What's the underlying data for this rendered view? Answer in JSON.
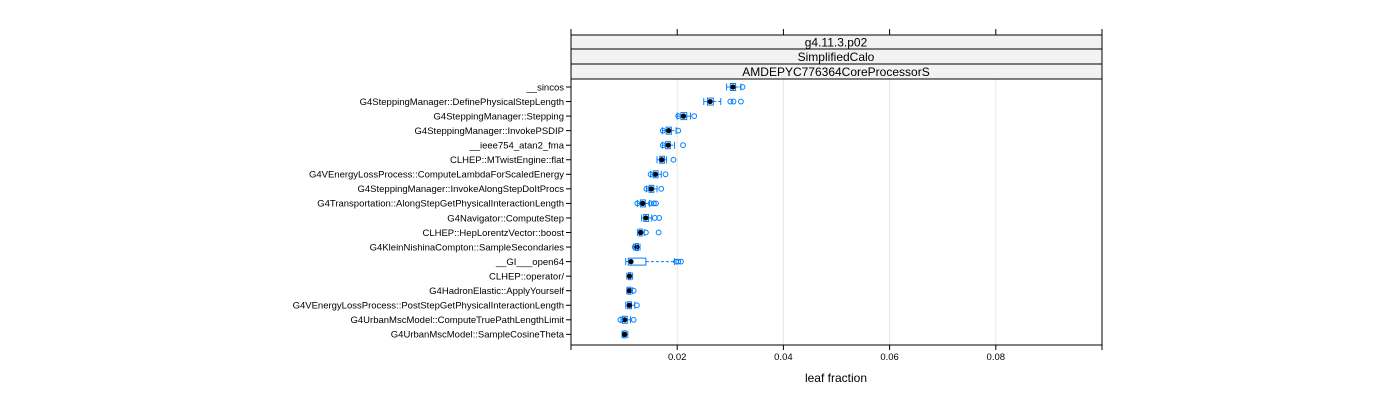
{
  "chart_data": {
    "type": "box",
    "strips": [
      "g4.11.3.p02",
      "SimplifiedCalo",
      "AMDEPYC776364CoreProcessorS"
    ],
    "xlabel": "leaf fraction",
    "xlim": [
      0,
      0.1
    ],
    "xticks": [
      0.02,
      0.04,
      0.06,
      0.08
    ],
    "xtick_labels": [
      "0.02",
      "0.04",
      "0.06",
      "0.08"
    ],
    "grid": true,
    "colors": {
      "box": "#0080ff",
      "median": "#000000",
      "grid": "#e6e6e6",
      "strip_bg": "#f2f2f2"
    },
    "categories": [
      "__sincos",
      "G4SteppingManager::DefinePhysicalStepLength",
      "G4SteppingManager::Stepping",
      "G4SteppingManager::InvokePSDIP",
      "__ieee754_atan2_fma",
      "CLHEP::MTwistEngine::flat",
      "G4VEnergyLossProcess::ComputeLambdaForScaledEnergy",
      "G4SteppingManager::InvokeAlongStepDoItProcs",
      "G4Transportation::AlongStepGetPhysicalInteractionLength",
      "G4Navigator::ComputeStep",
      "CLHEP::HepLorentzVector::boost",
      "G4KleinNishinaCompton::SampleSecondaries",
      "__GI___open64",
      "CLHEP::operator/",
      "G4HadronElastic::ApplyYourself",
      "G4VEnergyLossProcess::PostStepGetPhysicalInteractionLength",
      "G4UrbanMscModel::ComputeTruePathLengthLimit",
      "G4UrbanMscModel::SampleCosineTheta"
    ],
    "boxes": [
      {
        "whisker_low": 0.0293,
        "q1": 0.03,
        "median": 0.0305,
        "q3": 0.031,
        "whisker_high": 0.032,
        "outliers": [
          0.0323
        ]
      },
      {
        "whisker_low": 0.025,
        "q1": 0.0257,
        "median": 0.0262,
        "q3": 0.0268,
        "whisker_high": 0.0282,
        "outliers": [
          0.03,
          0.0306,
          0.032
        ]
      },
      {
        "whisker_low": 0.02,
        "q1": 0.0207,
        "median": 0.0212,
        "q3": 0.0218,
        "whisker_high": 0.0225,
        "outliers": [
          0.0202,
          0.0232
        ]
      },
      {
        "whisker_low": 0.0172,
        "q1": 0.0179,
        "median": 0.0184,
        "q3": 0.0189,
        "whisker_high": 0.0198,
        "outliers": [
          0.0173,
          0.0202
        ]
      },
      {
        "whisker_low": 0.0172,
        "q1": 0.0178,
        "median": 0.0183,
        "q3": 0.0187,
        "whisker_high": 0.0195,
        "outliers": [
          0.0173,
          0.0211
        ]
      },
      {
        "whisker_low": 0.0162,
        "q1": 0.0167,
        "median": 0.0171,
        "q3": 0.0176,
        "whisker_high": 0.018,
        "outliers": [
          0.0193
        ]
      },
      {
        "whisker_low": 0.015,
        "q1": 0.0155,
        "median": 0.0159,
        "q3": 0.0164,
        "whisker_high": 0.017,
        "outliers": [
          0.015,
          0.0178
        ]
      },
      {
        "whisker_low": 0.0142,
        "q1": 0.0147,
        "median": 0.0151,
        "q3": 0.0156,
        "whisker_high": 0.0162,
        "outliers": [
          0.0142,
          0.017
        ]
      },
      {
        "whisker_low": 0.0125,
        "q1": 0.0131,
        "median": 0.0135,
        "q3": 0.014,
        "whisker_high": 0.0148,
        "outliers": [
          0.0125,
          0.015,
          0.0156,
          0.016
        ]
      },
      {
        "whisker_low": 0.0133,
        "q1": 0.0137,
        "median": 0.0141,
        "q3": 0.0146,
        "whisker_high": 0.0152,
        "outliers": [
          0.0158,
          0.0166
        ]
      },
      {
        "whisker_low": 0.0125,
        "q1": 0.0128,
        "median": 0.0131,
        "q3": 0.0134,
        "whisker_high": 0.0138,
        "outliers": [
          0.0141,
          0.0165
        ]
      },
      {
        "whisker_low": 0.0118,
        "q1": 0.0121,
        "median": 0.0124,
        "q3": 0.0127,
        "whisker_high": 0.013,
        "outliers": [
          0.012
        ]
      },
      {
        "whisker_low": 0.0103,
        "q1": 0.0108,
        "median": 0.0113,
        "q3": 0.0141,
        "whisker_high": 0.0195,
        "outliers": [
          0.0198,
          0.0202,
          0.0207
        ]
      },
      {
        "whisker_low": 0.0105,
        "q1": 0.0108,
        "median": 0.011,
        "q3": 0.0113,
        "whisker_high": 0.0116,
        "outliers": []
      },
      {
        "whisker_low": 0.0105,
        "q1": 0.0107,
        "median": 0.011,
        "q3": 0.0113,
        "whisker_high": 0.0116,
        "outliers": [
          0.0118
        ]
      },
      {
        "whisker_low": 0.0103,
        "q1": 0.0106,
        "median": 0.011,
        "q3": 0.0114,
        "whisker_high": 0.012,
        "outliers": [
          0.0124
        ]
      },
      {
        "whisker_low": 0.0094,
        "q1": 0.0097,
        "median": 0.0101,
        "q3": 0.0106,
        "whisker_high": 0.0112,
        "outliers": [
          0.0093,
          0.0118
        ]
      },
      {
        "whisker_low": 0.0096,
        "q1": 0.0098,
        "median": 0.0101,
        "q3": 0.0104,
        "whisker_high": 0.0107,
        "outliers": []
      }
    ]
  }
}
